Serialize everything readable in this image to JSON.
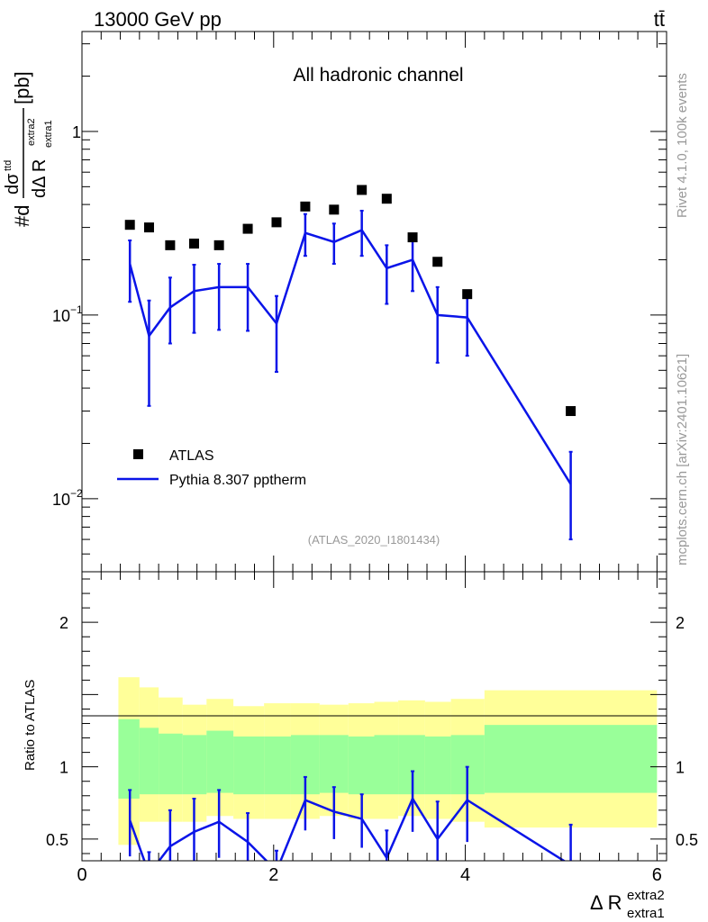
{
  "header": {
    "energy_label": "13000 GeV pp",
    "process_label": "tt̄"
  },
  "side_labels": {
    "rivet": "Rivet 4.1.0,  100k events",
    "source": "mcplots.cern.ch [arXiv:2401.10621]"
  },
  "chart_data": [
    {
      "type": "scatter",
      "panel": "main",
      "title": "All hadronic channel",
      "analysis_tag": "(ATLAS_2020_I1801434)",
      "ylabel": "#d dσ^ttd / dΔ R^extra2_extra1 [pb]",
      "ylabel_parts": {
        "prefix": "#d",
        "num": "dσ",
        "num_sup": "ttd",
        "den": "dΔ R",
        "den_sub": "extra1",
        "den_sup": "extra2",
        "unit": "[pb]"
      },
      "yscale": "log",
      "ylim": [
        0.004,
        3.5
      ],
      "xlim": [
        0,
        6.1
      ],
      "yticks": [
        {
          "value": 1,
          "label": "1"
        },
        {
          "value": 0.1,
          "label": "10",
          "exp": "−1"
        },
        {
          "value": 0.01,
          "label": "10",
          "exp": "−2"
        }
      ],
      "legend": {
        "position": "lower-left",
        "entries": [
          "ATLAS",
          "Pythia 8.307 pptherm"
        ]
      },
      "series": [
        {
          "name": "ATLAS",
          "kind": "markers",
          "color": "#000000",
          "x": [
            0.5,
            0.7,
            0.92,
            1.17,
            1.43,
            1.73,
            2.03,
            2.33,
            2.63,
            2.92,
            3.18,
            3.45,
            3.71,
            4.02,
            5.1
          ],
          "y": [
            0.31,
            0.3,
            0.24,
            0.245,
            0.24,
            0.295,
            0.32,
            0.39,
            0.375,
            0.48,
            0.43,
            0.265,
            0.195,
            0.13,
            0.03
          ]
        },
        {
          "name": "Pythia 8.307 pptherm",
          "kind": "line",
          "color": "#0a14e8",
          "x": [
            0.5,
            0.7,
            0.92,
            1.17,
            1.43,
            1.73,
            2.03,
            2.33,
            2.63,
            2.92,
            3.18,
            3.45,
            3.71,
            4.02,
            5.1
          ],
          "y": [
            0.19,
            0.077,
            0.11,
            0.135,
            0.142,
            0.142,
            0.09,
            0.28,
            0.25,
            0.29,
            0.18,
            0.2,
            0.1,
            0.097,
            0.012
          ],
          "err_low": [
            0.118,
            0.032,
            0.07,
            0.08,
            0.083,
            0.082,
            0.049,
            0.21,
            0.19,
            0.21,
            0.115,
            0.135,
            0.055,
            0.06,
            0.006
          ],
          "err_high": [
            0.255,
            0.12,
            0.16,
            0.188,
            0.19,
            0.19,
            0.127,
            0.355,
            0.315,
            0.37,
            0.24,
            0.27,
            0.142,
            0.133,
            0.018
          ]
        }
      ]
    },
    {
      "type": "line",
      "panel": "ratio",
      "ylabel": "Ratio to ATLAS",
      "xlabel": "Δ R^extra2_extra1",
      "xlabel_parts": {
        "main": "Δ R",
        "sup": "extra2",
        "sub": "extra1"
      },
      "ylim": [
        0.35,
        2.35
      ],
      "xlim": [
        0,
        6.1
      ],
      "xticks": [
        {
          "value": 0,
          "label": "0"
        },
        {
          "value": 2,
          "label": "2"
        },
        {
          "value": 4,
          "label": "4"
        },
        {
          "value": 6,
          "label": "6"
        }
      ],
      "yticks": [
        {
          "value": 0.5,
          "label": "0.5"
        },
        {
          "value": 1,
          "label": "1"
        },
        {
          "value": 2,
          "label": "2"
        }
      ],
      "bands": {
        "bin_edges": [
          0.38,
          0.6,
          0.8,
          1.05,
          1.3,
          1.58,
          1.9,
          2.18,
          2.48,
          2.78,
          3.05,
          3.3,
          3.58,
          3.85,
          4.2,
          6.0
        ],
        "yellow_low": [
          0.46,
          0.62,
          0.62,
          0.62,
          0.66,
          0.64,
          0.64,
          0.64,
          0.66,
          0.64,
          0.64,
          0.66,
          0.64,
          0.62,
          0.58
        ],
        "yellow_high": [
          1.62,
          1.55,
          1.48,
          1.43,
          1.47,
          1.42,
          1.44,
          1.44,
          1.43,
          1.44,
          1.45,
          1.46,
          1.45,
          1.47,
          1.53
        ],
        "green_low": [
          0.78,
          0.81,
          0.81,
          0.81,
          0.82,
          0.81,
          0.81,
          0.81,
          0.82,
          0.81,
          0.81,
          0.81,
          0.81,
          0.81,
          0.82
        ],
        "green_high": [
          1.33,
          1.27,
          1.23,
          1.22,
          1.25,
          1.21,
          1.21,
          1.22,
          1.22,
          1.21,
          1.22,
          1.22,
          1.21,
          1.22,
          1.29
        ],
        "yellow_color": "#ffff99",
        "green_color": "#99ff99"
      },
      "series": [
        {
          "name": "Pythia 8.307 pptherm / ATLAS",
          "color": "#0a14e8",
          "x": [
            0.5,
            0.7,
            0.92,
            1.17,
            1.43,
            1.73,
            2.03,
            2.33,
            2.63,
            2.92,
            3.18,
            3.45,
            3.71,
            4.02,
            5.1
          ],
          "y": [
            0.63,
            0.26,
            0.45,
            0.55,
            0.62,
            0.48,
            0.28,
            0.77,
            0.69,
            0.64,
            0.37,
            0.78,
            0.5,
            0.77,
            0.32
          ],
          "err_low": [
            0.38,
            0.12,
            0.28,
            0.33,
            0.37,
            0.28,
            0.15,
            0.56,
            0.5,
            0.44,
            0.23,
            0.55,
            0.3,
            0.48,
            0.2
          ],
          "err_high": [
            0.84,
            0.41,
            0.7,
            0.78,
            0.84,
            0.68,
            0.42,
            0.93,
            0.86,
            0.81,
            0.56,
            0.97,
            0.76,
            1.0,
            0.6
          ]
        }
      ]
    }
  ]
}
